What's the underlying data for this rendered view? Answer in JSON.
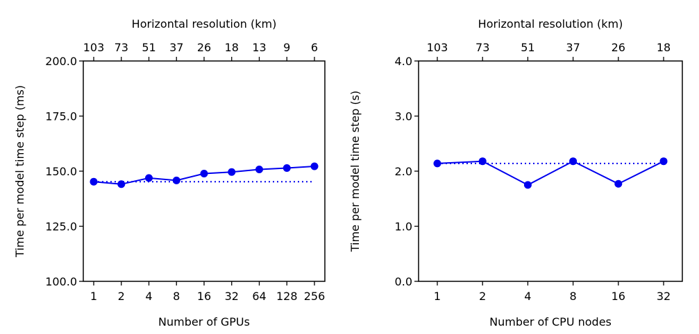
{
  "chart_data": [
    {
      "type": "line",
      "top_axis_label": "Horizontal resolution (km)",
      "top_ticks": [
        "103",
        "73",
        "51",
        "37",
        "26",
        "18",
        "13",
        "9",
        "6"
      ],
      "xlabel": "Number of GPUs",
      "ylabel": "Time per model time step (ms)",
      "categories": [
        "1",
        "2",
        "4",
        "8",
        "16",
        "32",
        "64",
        "128",
        "256"
      ],
      "yticks": [
        "100.0",
        "125.0",
        "150.0",
        "175.0",
        "200.0"
      ],
      "ylim": [
        100,
        200
      ],
      "series": [
        {
          "values": [
            145.2,
            144.1,
            146.9,
            145.8,
            148.9,
            149.6,
            150.8,
            151.4,
            152.2
          ],
          "style": "solid-with-markers"
        },
        {
          "values": [
            145.2,
            145.2,
            145.2,
            145.2,
            145.2,
            145.2,
            145.2,
            145.2,
            145.2
          ],
          "style": "dotted"
        }
      ],
      "color": "#0000ee",
      "grid": false
    },
    {
      "type": "line",
      "top_axis_label": "Horizontal resolution (km)",
      "top_ticks": [
        "103",
        "73",
        "51",
        "37",
        "26",
        "18"
      ],
      "xlabel": "Number of CPU nodes",
      "ylabel": "Time per model time step (s)",
      "categories": [
        "1",
        "2",
        "4",
        "8",
        "16",
        "32"
      ],
      "yticks": [
        "0.0",
        "1.0",
        "2.0",
        "3.0",
        "4.0"
      ],
      "ylim": [
        0,
        4
      ],
      "series": [
        {
          "values": [
            2.14,
            2.18,
            1.75,
            2.18,
            1.77,
            2.18
          ],
          "style": "solid-with-markers"
        },
        {
          "values": [
            2.14,
            2.14,
            2.14,
            2.14,
            2.14,
            2.14
          ],
          "style": "dotted"
        }
      ],
      "color": "#0000ee",
      "grid": false
    }
  ]
}
